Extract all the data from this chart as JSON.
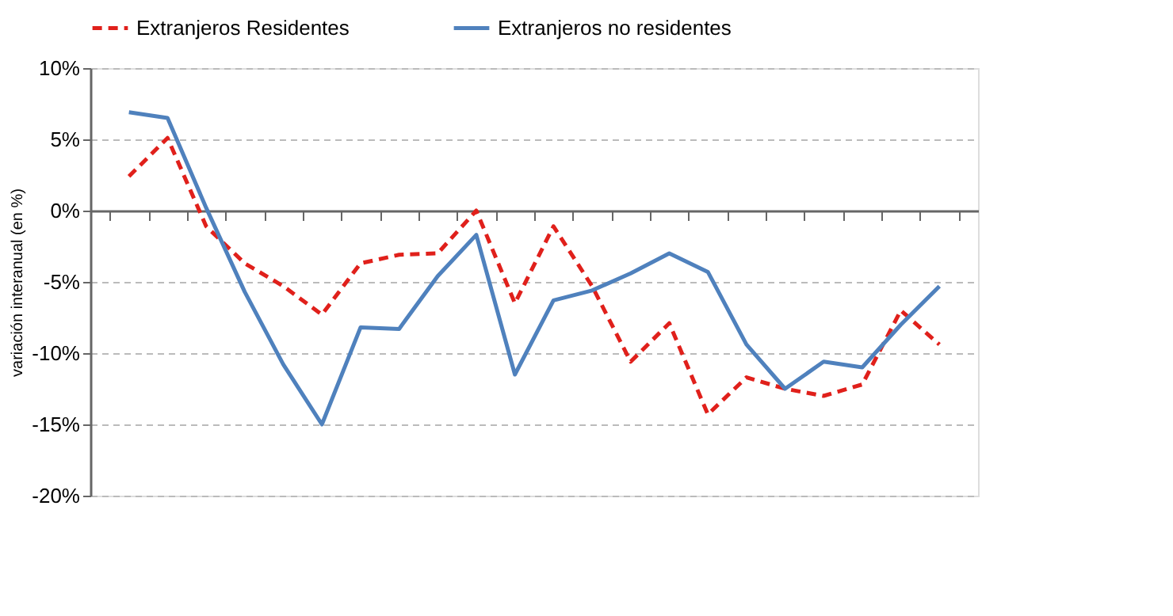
{
  "chart_data": {
    "type": "line",
    "ylabel": "variación interanual  (en %)",
    "categories": [
      null,
      null,
      null,
      null,
      null,
      null,
      null,
      null,
      null,
      null,
      null,
      null,
      null,
      null,
      null,
      null,
      null,
      null,
      null,
      null,
      null,
      null
    ],
    "series": [
      {
        "name": "Extranjeros Residentes",
        "color": "#e0201b",
        "line_style": "dashed",
        "values": [
          2.4,
          5.1,
          -1.1,
          -3.7,
          -5.3,
          -7.3,
          -3.7,
          -3.1,
          -3.0,
          0.0,
          -6.5,
          -1.1,
          -5.3,
          -10.6,
          -7.9,
          -14.3,
          -11.7,
          -12.5,
          -13.0,
          -12.2,
          -7.0,
          -9.4
        ]
      },
      {
        "name": "Extranjeros no residentes",
        "color": "#4f81bd",
        "line_style": "solid",
        "values": [
          6.9,
          6.5,
          0.2,
          -5.7,
          -10.8,
          -15.0,
          -8.2,
          -8.3,
          -4.6,
          -1.7,
          -11.5,
          -6.3,
          -5.6,
          -4.4,
          -3.0,
          -4.3,
          -9.4,
          -12.5,
          -10.6,
          -11.0,
          -8.0,
          -5.3
        ]
      }
    ],
    "ylim": [
      -20,
      10
    ],
    "yticks": [
      {
        "value": -20,
        "label": "-20%"
      },
      {
        "value": -15,
        "label": "-15%"
      },
      {
        "value": -10,
        "label": "-10%"
      },
      {
        "value": -5,
        "label": "-5%"
      },
      {
        "value": 0,
        "label": "0%"
      },
      {
        "value": 5,
        "label": "5%"
      },
      {
        "value": 10,
        "label": "10%"
      }
    ],
    "grid": "y",
    "legend": "top",
    "marker": "none",
    "tick_labels": "y"
  }
}
